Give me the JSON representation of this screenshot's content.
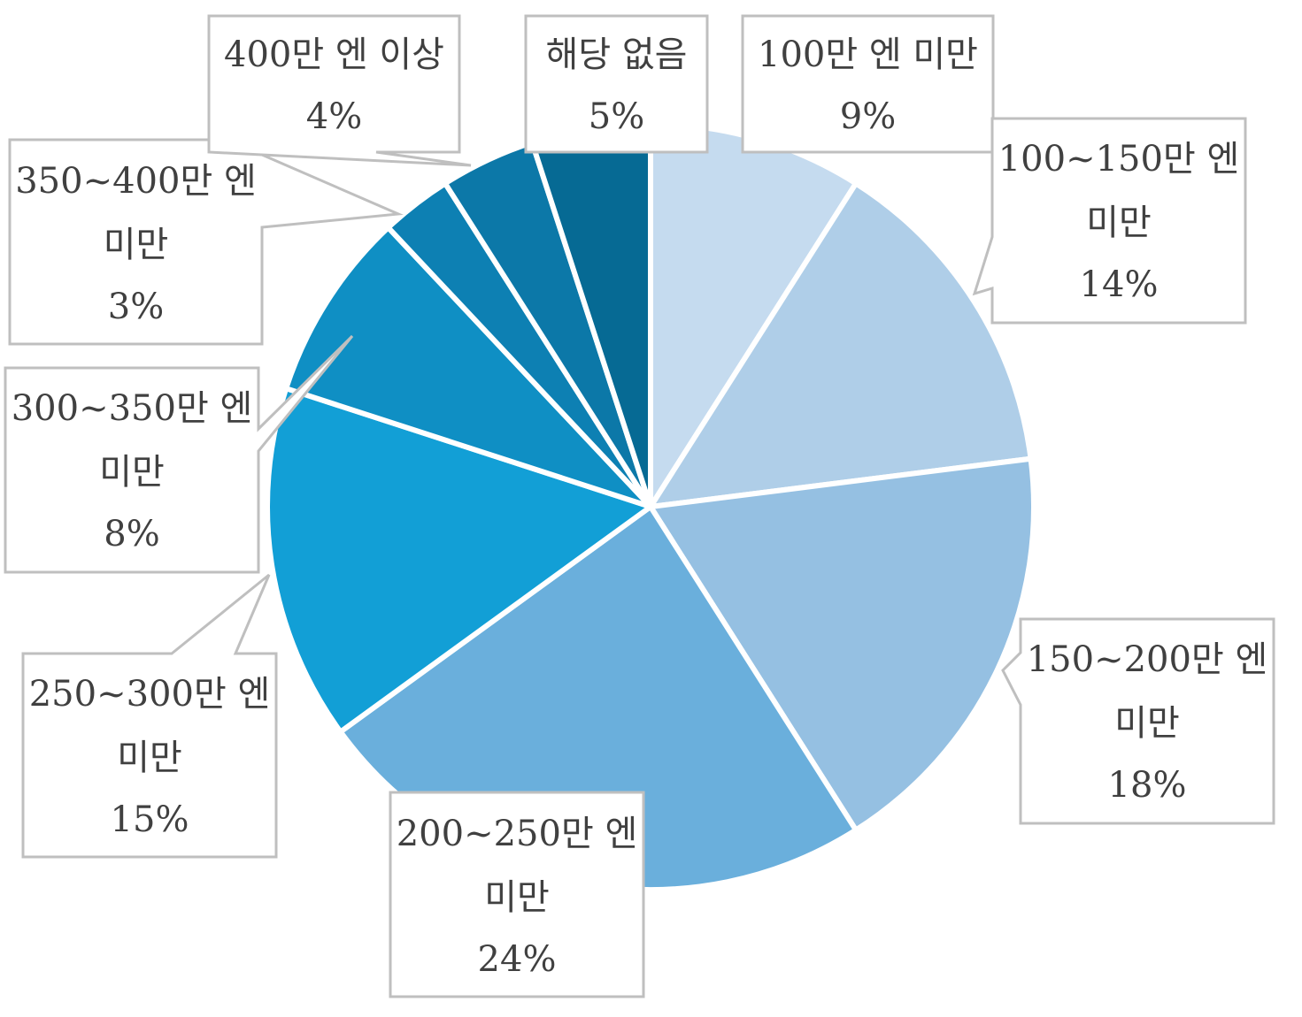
{
  "chart_data": {
    "type": "pie",
    "start_angle_deg": 0,
    "direction": "clockwise",
    "slices": [
      {
        "label": "100만 엔 미만",
        "lines": [
          "100만 엔 미만"
        ],
        "value_label": "9%",
        "value": 9,
        "color": "#c5dbef"
      },
      {
        "label": "100~150만 엔 미만",
        "lines": [
          "100~150만 엔",
          "미만"
        ],
        "value_label": "14%",
        "value": 14,
        "color": "#afcee8"
      },
      {
        "label": "150~200만 엔 미만",
        "lines": [
          "150~200만 엔",
          "미만"
        ],
        "value_label": "18%",
        "value": 18,
        "color": "#95c0e2"
      },
      {
        "label": "200~250만 엔 미만",
        "lines": [
          "200~250만 엔",
          "미만"
        ],
        "value_label": "24%",
        "value": 24,
        "color": "#6aafdc"
      },
      {
        "label": "250~300만 엔 미만",
        "lines": [
          "250~300만 엔",
          "미만"
        ],
        "value_label": "15%",
        "value": 15,
        "color": "#129fd6"
      },
      {
        "label": "300~350만 엔 미만",
        "lines": [
          "300~350만 엔",
          "미만"
        ],
        "value_label": "8%",
        "value": 8,
        "color": "#0f8fc4"
      },
      {
        "label": "350~400만 엔 미만",
        "lines": [
          "350~400만 엔",
          "미만"
        ],
        "value_label": "3%",
        "value": 3,
        "color": "#0d80b3"
      },
      {
        "label": "400만 엔 이상",
        "lines": [
          "400만 엔 이상"
        ],
        "value_label": "4%",
        "value": 4,
        "color": "#0c78a8"
      },
      {
        "label": "해당 없음",
        "lines": [
          "해당 없음"
        ],
        "value_label": "5%",
        "value": 5,
        "color": "#066a94"
      }
    ]
  }
}
